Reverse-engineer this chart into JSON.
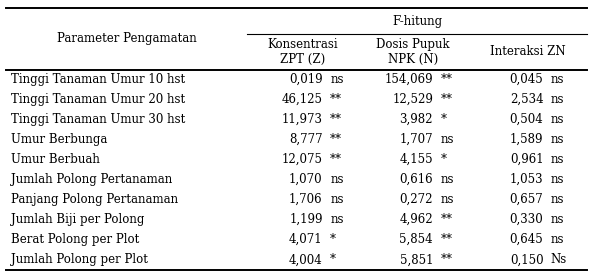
{
  "title": "F-hitung",
  "header_param": "Parameter Pengamatan",
  "header_z": "Konsentrasi\nZPT (Z)",
  "header_n": "Dosis Pupuk\nNPK (N)",
  "header_zn": "Interaksi ZN",
  "rows": [
    [
      "Tinggi Tanaman Umur 10 hst",
      "0,019",
      "ns",
      "154,069",
      "**",
      "0,045",
      "ns"
    ],
    [
      "Tinggi Tanaman Umur 20 hst",
      "46,125",
      "**",
      "12,529",
      "**",
      "2,534",
      "ns"
    ],
    [
      "Tinggi Tanaman Umur 30 hst",
      "11,973",
      "**",
      "3,982",
      "*",
      "0,504",
      "ns"
    ],
    [
      "Umur Berbunga",
      "8,777",
      "**",
      "1,707",
      "ns",
      "1,589",
      "ns"
    ],
    [
      "Umur Berbuah",
      "12,075",
      "**",
      "4,155",
      "*",
      "0,961",
      "ns"
    ],
    [
      "Jumlah Polong Pertanaman",
      "1,070",
      "ns",
      "0,616",
      "ns",
      "1,053",
      "ns"
    ],
    [
      "Panjang Polong Pertanaman",
      "1,706",
      "ns",
      "0,272",
      "ns",
      "0,657",
      "ns"
    ],
    [
      "Jumlah Biji per Polong",
      "1,199",
      "ns",
      "4,962",
      "**",
      "0,330",
      "ns"
    ],
    [
      "Berat Polong per Plot",
      "4,071",
      "*",
      "5,854",
      "**",
      "0,645",
      "ns"
    ],
    [
      "Jumlah Polong per Plot",
      "4,004",
      "*",
      "5,851",
      "**",
      "0,150",
      "Ns"
    ]
  ],
  "bg_color": "#ffffff",
  "font_family": "serif",
  "fontsize": 8.5,
  "col_splits": [
    0.0,
    0.415,
    0.605,
    0.795,
    1.0
  ]
}
